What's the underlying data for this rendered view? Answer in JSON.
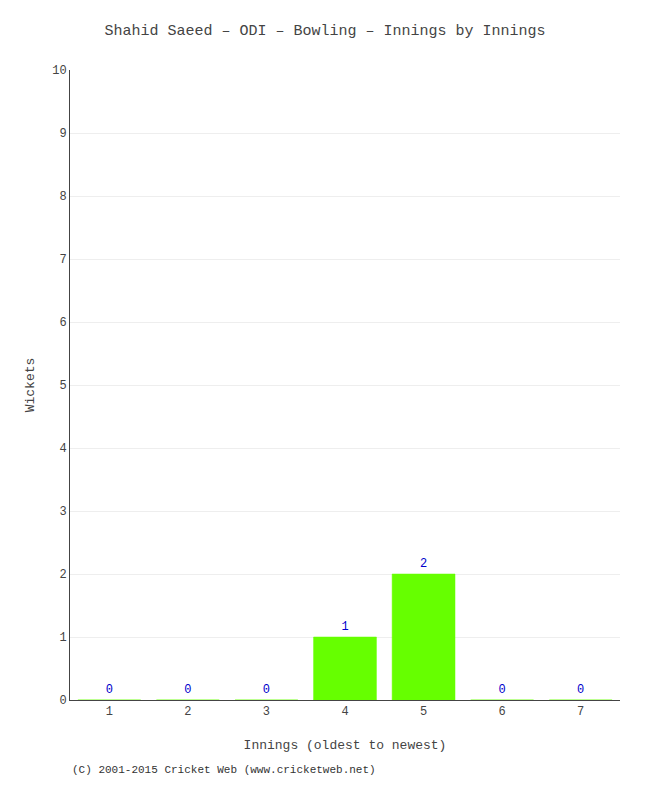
{
  "chart_data": {
    "type": "bar",
    "title": "Shahid Saeed – ODI – Bowling – Innings by Innings",
    "x_label": "Innings (oldest to newest)",
    "y_label": "Wickets",
    "x": [
      1,
      2,
      3,
      4,
      5,
      6,
      7
    ],
    "values": [
      0,
      0,
      0,
      1,
      2,
      0,
      0
    ],
    "color": "#66ff00",
    "xlim": [
      0.5,
      7.5
    ],
    "xticks": [
      1,
      2,
      3,
      4,
      5,
      6,
      7
    ],
    "ylim": [
      0,
      10
    ],
    "yticks": [
      0,
      1,
      2,
      3,
      4,
      5,
      6,
      7,
      8,
      9,
      10
    ],
    "grid": true,
    "data_labels": true,
    "annotations": [
      "(C) 2001-2015 Cricket Web (www.cricketweb.net)"
    ]
  }
}
